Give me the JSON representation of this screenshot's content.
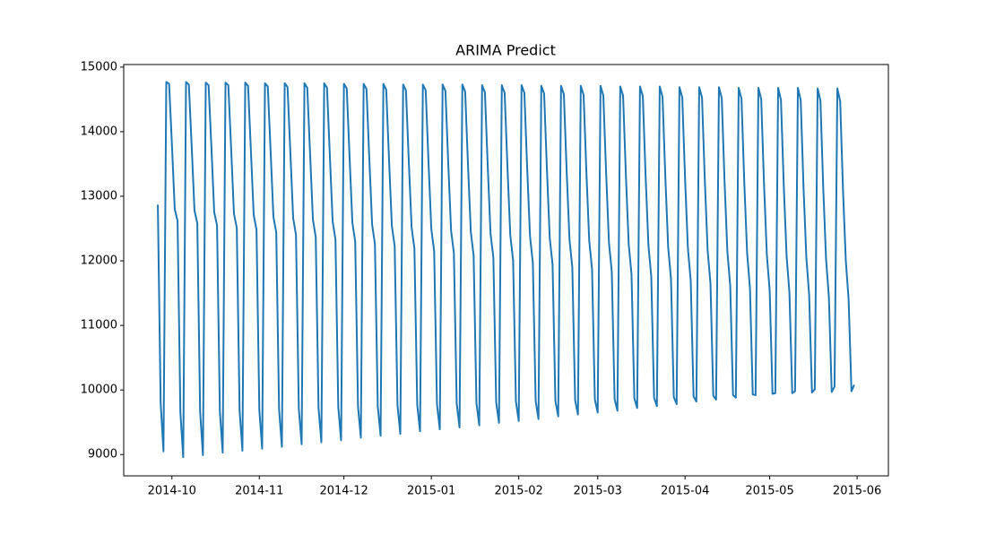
{
  "chart_data": {
    "type": "line",
    "title": "ARIMA Predict",
    "color": "#1f77b4",
    "ylim": [
      8670,
      15040
    ],
    "yticks": [
      9000,
      10000,
      11000,
      12000,
      13000,
      14000,
      15000
    ],
    "categories": [
      null,
      null,
      null,
      null,
      null,
      "2014-10",
      null,
      null,
      null,
      null,
      null,
      null,
      null,
      null,
      null,
      null,
      null,
      null,
      null,
      null,
      null,
      null,
      null,
      null,
      null,
      null,
      null,
      null,
      null,
      null,
      null,
      null,
      null,
      null,
      null,
      null,
      "2014-11",
      null,
      null,
      null,
      null,
      null,
      null,
      null,
      null,
      null,
      null,
      null,
      null,
      null,
      null,
      null,
      null,
      null,
      null,
      null,
      null,
      null,
      null,
      null,
      null,
      null,
      null,
      null,
      null,
      null,
      "2014-12",
      null,
      null,
      null,
      null,
      null,
      null,
      null,
      null,
      null,
      null,
      null,
      null,
      null,
      null,
      null,
      null,
      null,
      null,
      null,
      null,
      null,
      null,
      null,
      null,
      null,
      null,
      null,
      null,
      null,
      null,
      "2015-01",
      null,
      null,
      null,
      null,
      null,
      null,
      null,
      null,
      null,
      null,
      null,
      null,
      null,
      null,
      null,
      null,
      null,
      null,
      null,
      null,
      null,
      null,
      null,
      null,
      null,
      null,
      null,
      null,
      null,
      null,
      "2015-02",
      null,
      null,
      null,
      null,
      null,
      null,
      null,
      null,
      null,
      null,
      null,
      null,
      null,
      null,
      null,
      null,
      null,
      null,
      null,
      null,
      null,
      null,
      null,
      null,
      null,
      null,
      null,
      "2015-03",
      null,
      null,
      null,
      null,
      null,
      null,
      null,
      null,
      null,
      null,
      null,
      null,
      null,
      null,
      null,
      null,
      null,
      null,
      null,
      null,
      null,
      null,
      null,
      null,
      null,
      null,
      null,
      null,
      null,
      null,
      "2015-04",
      null,
      null,
      null,
      null,
      null,
      null,
      null,
      null,
      null,
      null,
      null,
      null,
      null,
      null,
      null,
      null,
      null,
      null,
      null,
      null,
      null,
      null,
      null,
      null,
      null,
      null,
      null,
      null,
      null,
      "2015-05",
      null,
      null,
      null,
      null,
      null,
      null,
      null,
      null,
      null,
      null,
      null,
      null,
      null,
      null,
      null,
      null,
      null,
      null,
      null,
      null,
      null,
      null,
      null,
      null,
      null,
      null,
      null,
      null,
      null,
      null,
      "2015-06"
    ],
    "values": [
      12870,
      9800,
      9050,
      14770,
      14740,
      13800,
      12800,
      12620,
      9650,
      8960,
      14770,
      14730,
      13780,
      12780,
      12580,
      9660,
      8990,
      14760,
      14720,
      13760,
      12750,
      12550,
      9670,
      9030,
      14760,
      14720,
      13740,
      12730,
      12510,
      9680,
      9060,
      14760,
      14710,
      13720,
      12710,
      12480,
      9690,
      9090,
      14750,
      14700,
      13700,
      12680,
      12440,
      9700,
      9120,
      14750,
      14690,
      13680,
      12660,
      12400,
      9710,
      9160,
      14750,
      14680,
      13660,
      12640,
      12370,
      9720,
      9190,
      14750,
      14680,
      13640,
      12610,
      12330,
      9730,
      9220,
      14740,
      14670,
      13610,
      12590,
      12300,
      9740,
      9260,
      14740,
      14660,
      13590,
      12560,
      12260,
      9750,
      9290,
      14740,
      14650,
      13570,
      12540,
      12230,
      9760,
      9320,
      14730,
      14640,
      13550,
      12520,
      12190,
      9770,
      9360,
      14730,
      14640,
      13530,
      12490,
      12150,
      9780,
      9390,
      14730,
      14630,
      13510,
      12470,
      12120,
      9790,
      9420,
      14730,
      14620,
      13490,
      12450,
      12080,
      9800,
      9450,
      14720,
      14610,
      13470,
      12420,
      12050,
      9810,
      9490,
      14720,
      14600,
      13450,
      12400,
      12010,
      9820,
      9520,
      14720,
      14600,
      13430,
      12380,
      11970,
      9830,
      9550,
      14710,
      14590,
      13410,
      12350,
      11940,
      9830,
      9590,
      14710,
      14580,
      13390,
      12330,
      11900,
      9840,
      9620,
      14710,
      14570,
      13370,
      12310,
      11870,
      9850,
      9650,
      14710,
      14560,
      13350,
      12280,
      11830,
      9860,
      9680,
      14700,
      14560,
      13330,
      12260,
      11790,
      9870,
      9720,
      14700,
      14550,
      13310,
      12240,
      11760,
      9880,
      9750,
      14700,
      14540,
      13290,
      12210,
      11720,
      9890,
      9780,
      14690,
      14530,
      13260,
      12190,
      11690,
      9900,
      9820,
      14690,
      14530,
      13240,
      12160,
      11650,
      9910,
      9850,
      14690,
      14520,
      13220,
      12140,
      11620,
      9920,
      9880,
      14680,
      14510,
      13200,
      12120,
      11580,
      9930,
      9920,
      14680,
      14500,
      13180,
      12090,
      11540,
      9940,
      9950,
      14680,
      14490,
      13160,
      12070,
      11510,
      9950,
      9980,
      14680,
      14490,
      13140,
      12050,
      11470,
      9960,
      10010,
      14670,
      14480,
      13120,
      12020,
      11440,
      9970,
      10050,
      14670,
      14470,
      13100,
      12000,
      11400,
      9980,
      10080,
      null
    ]
  }
}
